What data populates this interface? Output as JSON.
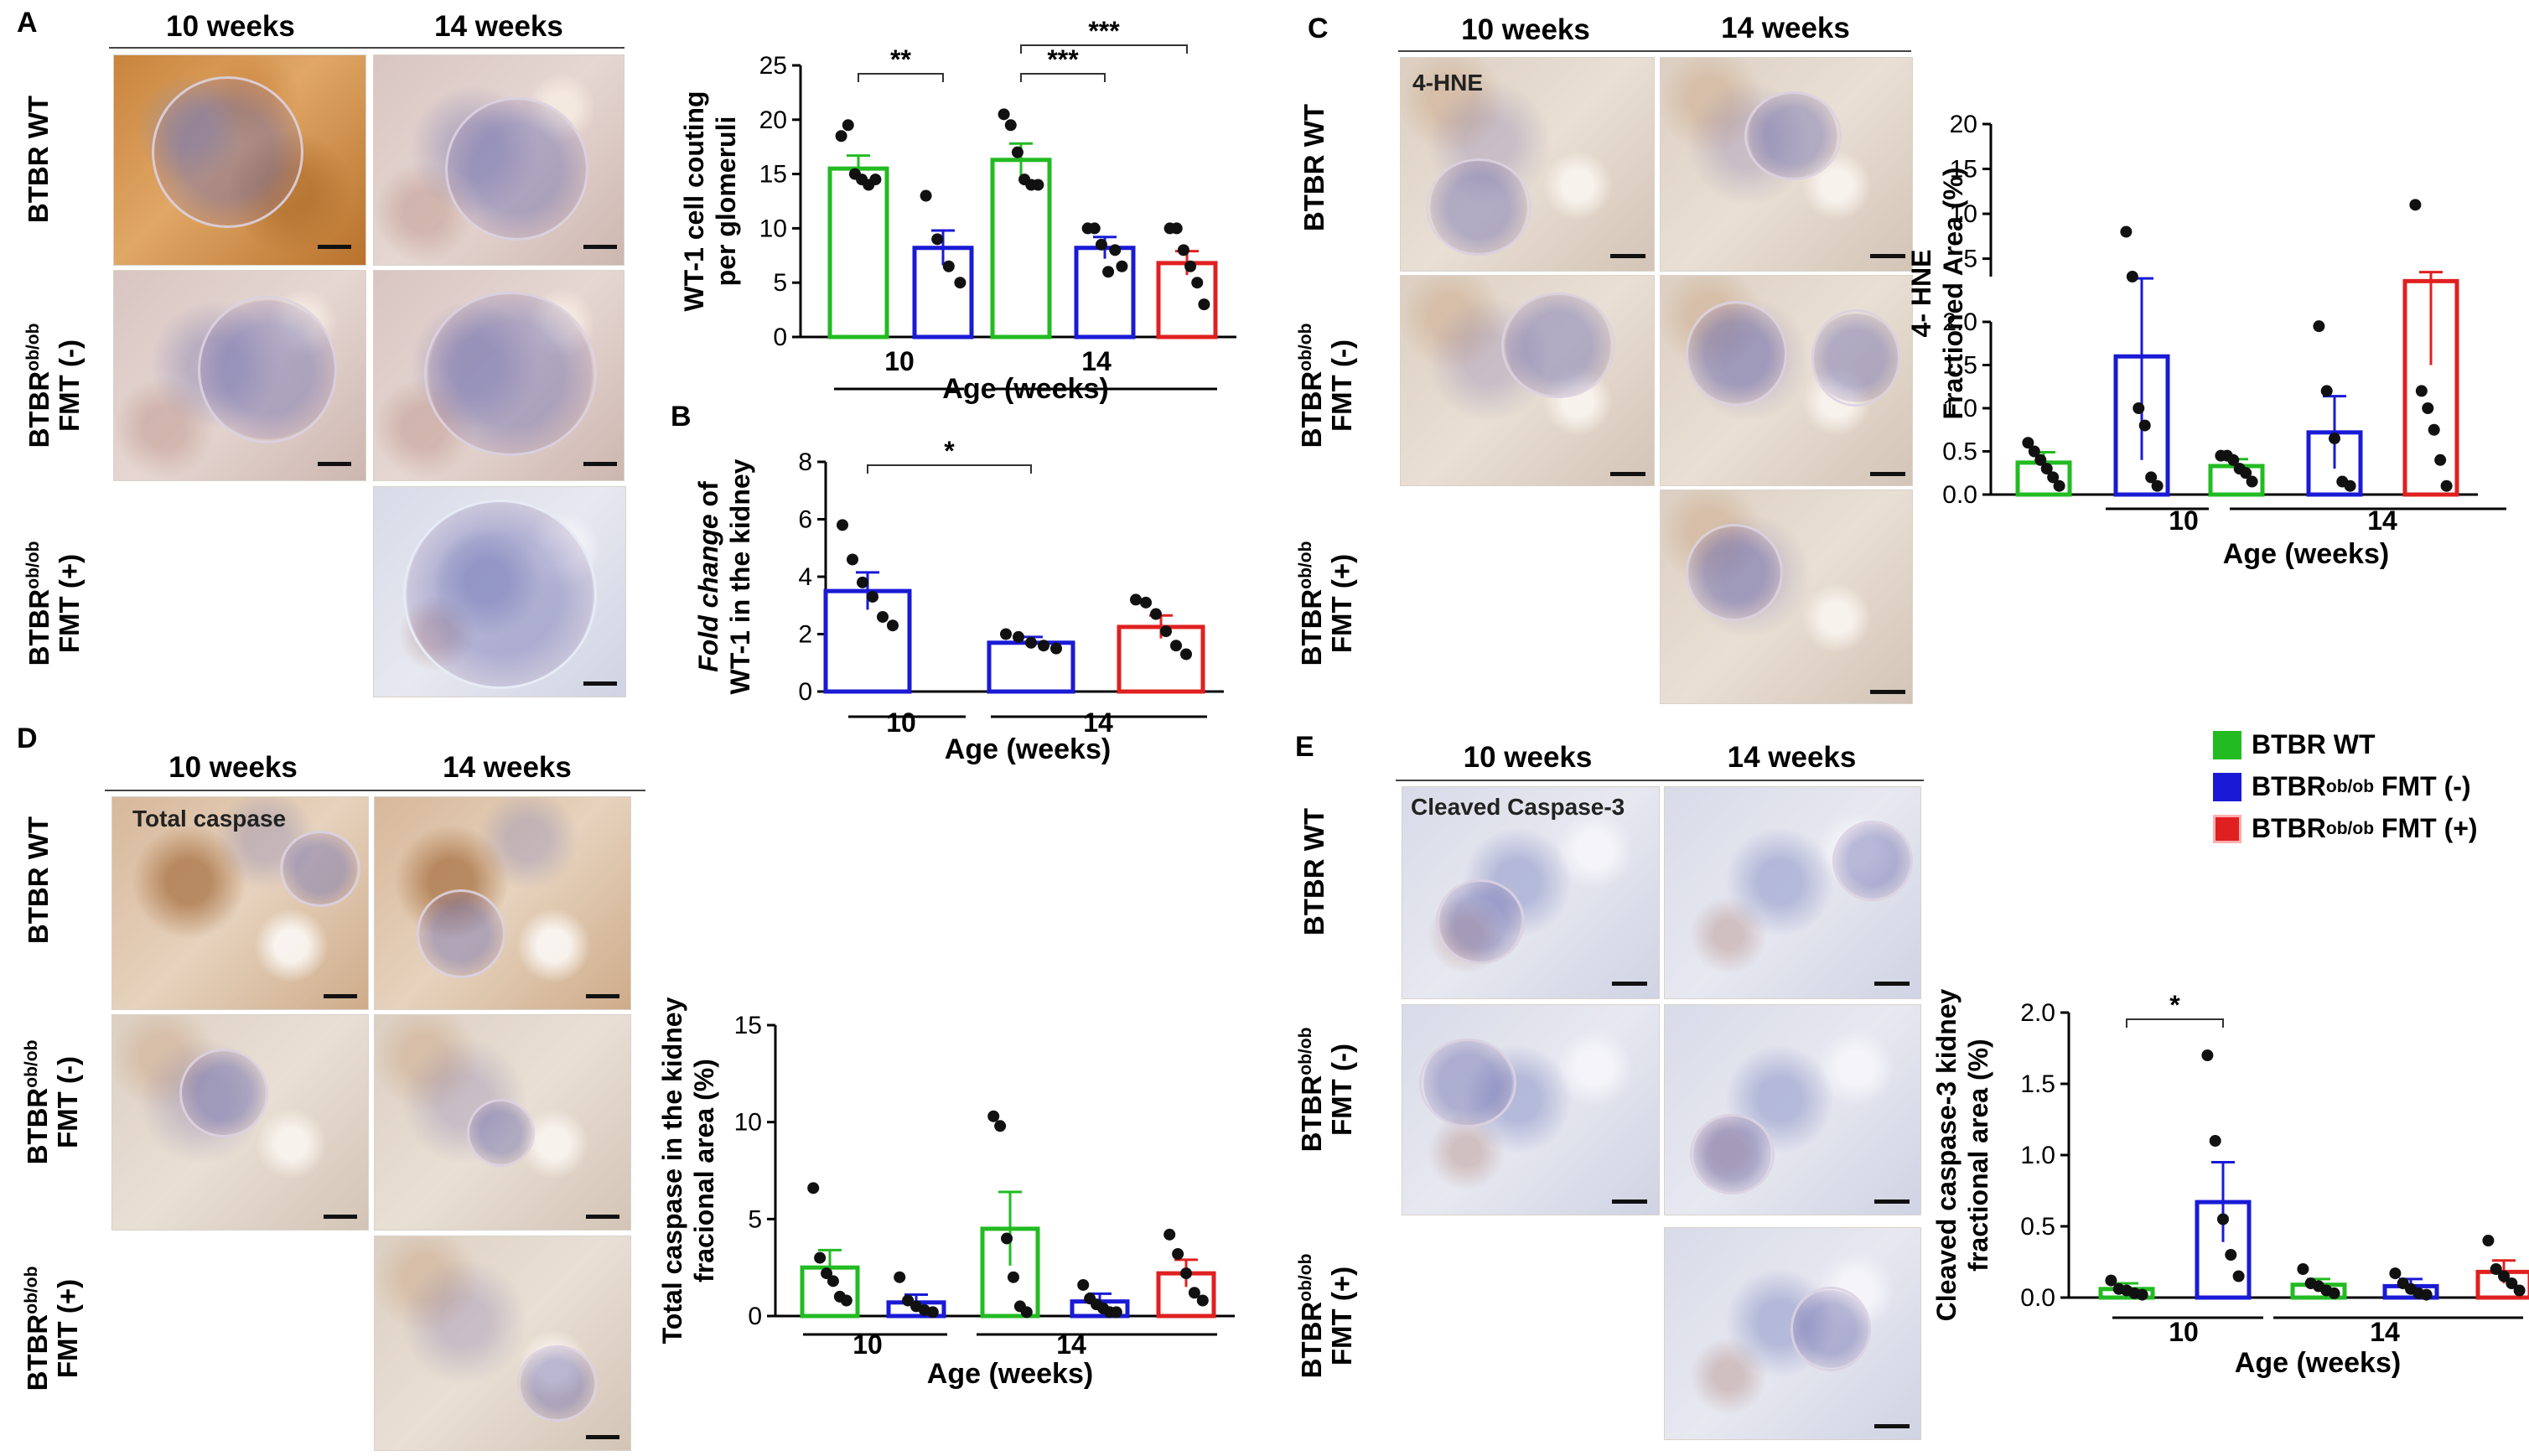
{
  "colors": {
    "green": "#22bb22",
    "blue": "#1a1ad6",
    "red": "#e02020"
  },
  "panels": {
    "A": {
      "letter": "A",
      "col1": "10 weeks",
      "col2": "14 weeks"
    },
    "B": {
      "letter": "B"
    },
    "C": {
      "letter": "C",
      "col1": "10 weeks",
      "col2": "14 weeks",
      "inset": "4-HNE"
    },
    "D": {
      "letter": "D",
      "col1": "10 weeks",
      "col2": "14 weeks",
      "inset": "Total caspase"
    },
    "E": {
      "letter": "E",
      "col1": "10 weeks",
      "col2": "14 weeks",
      "inset": "Cleaved Caspase-3"
    }
  },
  "row_labels": {
    "wt": "BTBR WT",
    "ob_prefix": "BTBR",
    "ob_sup": "ob/ob",
    "fmt_neg": "FMT (-)",
    "fmt_pos": "FMT (+)"
  },
  "legend": [
    {
      "prefix": "BTBR WT",
      "sup": "",
      "suffix": "",
      "color": "#22bb22"
    },
    {
      "prefix": "BTBR",
      "sup": "ob/ob",
      "suffix": " FMT (-)",
      "color": "#1a1ad6"
    },
    {
      "prefix": "BTBR",
      "sup": "ob/ob",
      "suffix": " FMT (+)",
      "color": "#e02020"
    }
  ],
  "chart_data": [
    {
      "id": "A",
      "type": "bar",
      "ylabel": [
        "WT-1 cell couting",
        "per glomeruli"
      ],
      "xlabel": "Age (weeks)",
      "groups": [
        "10",
        "14"
      ],
      "ylim": [
        0,
        25
      ],
      "yticks": [
        0,
        5,
        10,
        15,
        20,
        25
      ],
      "bars": [
        {
          "group": 0,
          "series": "green",
          "value": 15.5,
          "err": 1.2,
          "points": [
            18.5,
            19.5,
            15,
            14.5,
            14,
            14.5
          ]
        },
        {
          "group": 0,
          "series": "blue",
          "value": 8.2,
          "err": 1.6,
          "points": [
            13,
            9,
            6.5,
            5
          ]
        },
        {
          "group": 1,
          "series": "green",
          "value": 16.3,
          "err": 1.5,
          "points": [
            20.5,
            19.5,
            17,
            14.5,
            14,
            14
          ]
        },
        {
          "group": 1,
          "series": "blue",
          "value": 8.2,
          "err": 1.0,
          "points": [
            10,
            10,
            8.5,
            6,
            8,
            6.5
          ]
        },
        {
          "group": 1,
          "series": "red",
          "value": 6.8,
          "err": 1.1,
          "points": [
            10,
            10,
            8,
            6.5,
            5,
            3
          ]
        }
      ],
      "sig": [
        {
          "from": 0,
          "to": 1,
          "y": 24,
          "label": "**"
        },
        {
          "from": 2,
          "to": 3,
          "y": 24,
          "label": "***"
        },
        {
          "from": 2,
          "to": 4,
          "y": 26,
          "label": "***"
        }
      ]
    },
    {
      "id": "B",
      "type": "bar",
      "ylabel_italic": "Fold change",
      "ylabel_rest": " of",
      "ylabel2": "WT-1 in the kidney",
      "xlabel": "Age (weeks)",
      "groups": [
        "10",
        "14"
      ],
      "ylim": [
        0,
        8
      ],
      "yticks": [
        0,
        2,
        4,
        6,
        8
      ],
      "bars": [
        {
          "group": 0,
          "series": "blue",
          "value": 3.5,
          "err": 0.65,
          "points": [
            5.8,
            4.6,
            3.8,
            3.3,
            2.6,
            2.3
          ]
        },
        {
          "group": 1,
          "series": "blue",
          "value": 1.7,
          "err": 0.2,
          "points": [
            2.0,
            1.9,
            1.7,
            1.6,
            1.5
          ]
        },
        {
          "group": 1,
          "series": "red",
          "value": 2.25,
          "err": 0.4,
          "points": [
            3.2,
            3.1,
            2.7,
            2.1,
            1.6,
            1.3
          ]
        }
      ],
      "sig": [
        {
          "from": 0,
          "to": 1,
          "y": 7.9,
          "label": "*"
        }
      ]
    },
    {
      "id": "C",
      "type": "bar",
      "ylabel": [
        "4- HNE",
        "Fractioned Area (%)"
      ],
      "xlabel": "Age  (weeks)",
      "groups": [
        "10",
        "14"
      ],
      "broken": true,
      "ylim_low": [
        0,
        2.0
      ],
      "yticks_low": [
        0.0,
        0.5,
        1.0,
        1.5,
        2.0
      ],
      "ylim_high": [
        3,
        20
      ],
      "yticks_high": [
        5,
        10,
        15,
        20
      ],
      "bars": [
        {
          "group": 0,
          "series": "green",
          "value": 0.37,
          "err": 0.12,
          "points": [
            0.6,
            0.5,
            0.4,
            0.3,
            0.2,
            0.1
          ]
        },
        {
          "group": 0,
          "series": "blue",
          "value": 1.6,
          "err": 1.2,
          "points": [
            8,
            3,
            1.0,
            0.8,
            0.2,
            0.1
          ]
        },
        {
          "group": 1,
          "series": "green",
          "value": 0.33,
          "err": 0.08,
          "points": [
            0.45,
            0.45,
            0.4,
            0.3,
            0.25,
            0.15
          ]
        },
        {
          "group": 1,
          "series": "blue",
          "value": 0.72,
          "err": 0.42,
          "points": [
            1.95,
            1.2,
            0.65,
            0.15,
            0.1
          ]
        },
        {
          "group": 1,
          "series": "red",
          "value": 2.5,
          "err": 1.0,
          "points": [
            11,
            1.2,
            1.0,
            0.75,
            0.4,
            0.1
          ]
        }
      ]
    },
    {
      "id": "D",
      "type": "bar",
      "ylabel": [
        "Total caspase in the kidney",
        "fracional area (%)"
      ],
      "xlabel": "Age (weeks)",
      "groups": [
        "10",
        "14"
      ],
      "ylim": [
        0,
        15
      ],
      "yticks": [
        0,
        5,
        10,
        15
      ],
      "bars": [
        {
          "group": 0,
          "series": "green",
          "value": 2.5,
          "err": 0.9,
          "points": [
            6.6,
            3.0,
            2.2,
            1.8,
            1.0,
            0.8
          ]
        },
        {
          "group": 0,
          "series": "blue",
          "value": 0.7,
          "err": 0.4,
          "points": [
            2.0,
            0.8,
            0.5,
            0.3,
            0.2
          ]
        },
        {
          "group": 1,
          "series": "green",
          "value": 4.5,
          "err": 1.9,
          "points": [
            10.3,
            9.8,
            4.0,
            2.0,
            0.5,
            0.2
          ]
        },
        {
          "group": 1,
          "series": "blue",
          "value": 0.75,
          "err": 0.4,
          "points": [
            1.6,
            0.9,
            0.6,
            0.4,
            0.2,
            0.2
          ]
        },
        {
          "group": 1,
          "series": "red",
          "value": 2.2,
          "err": 0.7,
          "points": [
            4.2,
            3.2,
            2.2,
            1.2,
            0.8
          ]
        }
      ]
    },
    {
      "id": "E",
      "type": "bar",
      "ylabel": [
        "Cleaved caspase-3 kidney",
        "fractional area (%)"
      ],
      "xlabel": "Age (weeks)",
      "groups": [
        "10",
        "14"
      ],
      "ylim": [
        0,
        2.0
      ],
      "yticks": [
        0.0,
        0.5,
        1.0,
        1.5,
        2.0
      ],
      "bars": [
        {
          "group": 0,
          "series": "green",
          "value": 0.06,
          "err": 0.04,
          "points": [
            0.12,
            0.06,
            0.05,
            0.03,
            0.02
          ]
        },
        {
          "group": 0,
          "series": "blue",
          "value": 0.67,
          "err": 0.28,
          "points": [
            1.7,
            1.1,
            0.55,
            0.3,
            0.15
          ]
        },
        {
          "group": 1,
          "series": "green",
          "value": 0.09,
          "err": 0.04,
          "points": [
            0.2,
            0.1,
            0.08,
            0.05,
            0.03
          ]
        },
        {
          "group": 1,
          "series": "blue",
          "value": 0.08,
          "err": 0.05,
          "points": [
            0.17,
            0.1,
            0.06,
            0.03,
            0.02
          ]
        },
        {
          "group": 1,
          "series": "red",
          "value": 0.18,
          "err": 0.08,
          "points": [
            0.4,
            0.2,
            0.15,
            0.1,
            0.05
          ]
        }
      ],
      "sig": [
        {
          "from": 0,
          "to": 1,
          "y": 1.95,
          "label": "*"
        }
      ]
    }
  ]
}
